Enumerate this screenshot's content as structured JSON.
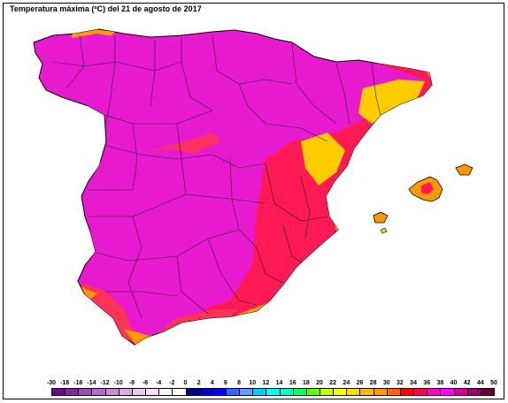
{
  "title": "Temperatura máxima (ºC) del 21 de agosto de 2017",
  "map": {
    "region": "Spain (peninsula and Balearic Islands)",
    "variable": "maximum temperature",
    "units": "ºC",
    "borders": "provincial boundaries shown",
    "hottest_color": "#ff00cc",
    "warm_color": "#ff0055",
    "mid_color": "#ff9900",
    "cool_color": "#ffdd00"
  },
  "legend": {
    "ticks": [
      "-30",
      "-18",
      "-16",
      "-14",
      "-12",
      "-10",
      "-8",
      "-6",
      "-4",
      "-2",
      "0",
      "2",
      "4",
      "6",
      "8",
      "10",
      "12",
      "14",
      "16",
      "18",
      "20",
      "22",
      "24",
      "26",
      "28",
      "30",
      "32",
      "34",
      "36",
      "38",
      "40",
      "42",
      "44",
      "50"
    ],
    "colors": [
      "#6a0a8a",
      "#7f2aa0",
      "#9b4bb8",
      "#b46ccc",
      "#c98ad8",
      "#dcaae4",
      "#ebc9ee",
      "#f4e2f4",
      "#fbf3fb",
      "#ffffff",
      "#000080",
      "#0000c0",
      "#0000ff",
      "#3366ff",
      "#6699ff",
      "#00ccff",
      "#00ffff",
      "#00ffcc",
      "#00ff66",
      "#66ff00",
      "#ccff00",
      "#ffff00",
      "#ffdd00",
      "#ffbb00",
      "#ff9900",
      "#ff6600",
      "#ff0000",
      "#ff0055",
      "#ff00cc",
      "#ff00ff",
      "#cc0099",
      "#990066",
      "#660033"
    ]
  }
}
